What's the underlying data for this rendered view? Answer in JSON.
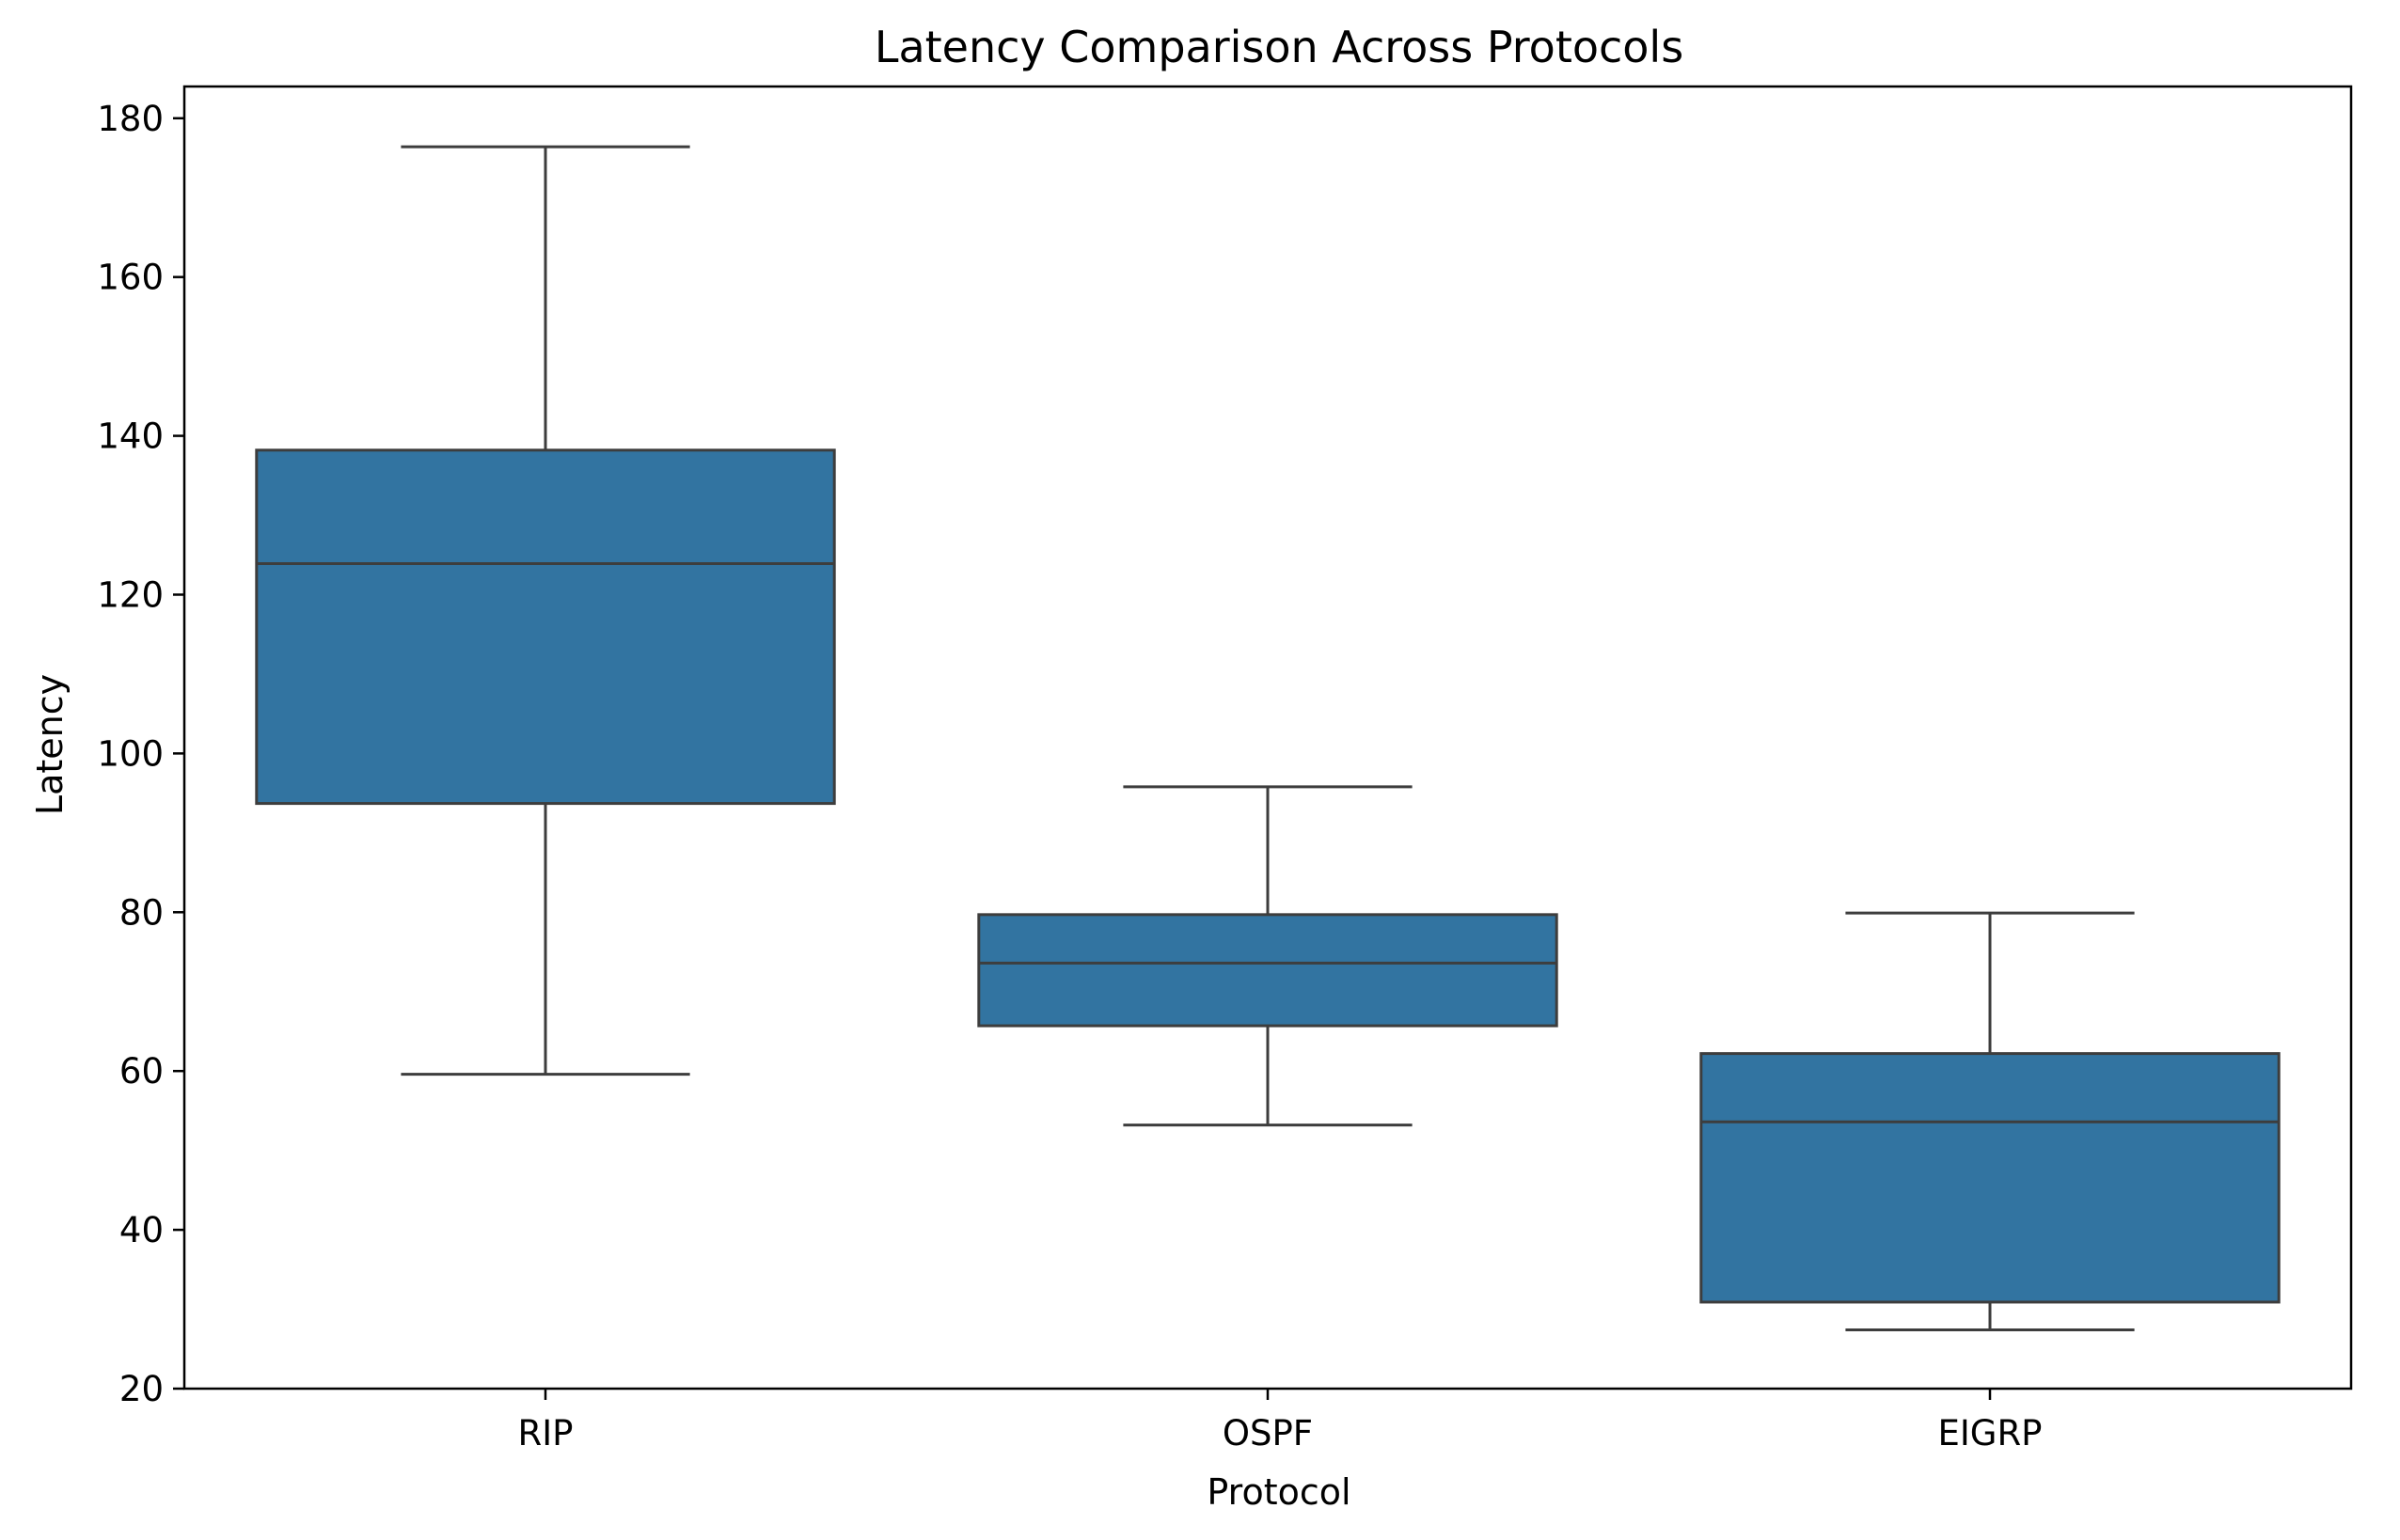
{
  "chart_data": {
    "type": "box",
    "title": "Latency Comparison Across Protocols",
    "xlabel": "Protocol",
    "ylabel": "Latency",
    "categories": [
      "RIP",
      "OSPF",
      "EIGRP"
    ],
    "boxes": [
      {
        "category": "RIP",
        "whisker_low": 59.6,
        "q1": 93.7,
        "median": 123.9,
        "q3": 138.2,
        "whisker_high": 176.4
      },
      {
        "category": "OSPF",
        "whisker_low": 53.2,
        "q1": 65.7,
        "median": 73.6,
        "q3": 79.7,
        "whisker_high": 95.8
      },
      {
        "category": "EIGRP",
        "whisker_low": 27.4,
        "q1": 30.9,
        "median": 53.6,
        "q3": 62.2,
        "whisker_high": 79.9
      }
    ],
    "ylim": [
      20,
      184
    ],
    "yticks": [
      20,
      40,
      60,
      80,
      100,
      120,
      140,
      160,
      180
    ],
    "grid": false,
    "colors": {
      "box_fill": "#3274a1",
      "box_edge": "#3d3d3d",
      "axis": "#000000"
    }
  }
}
